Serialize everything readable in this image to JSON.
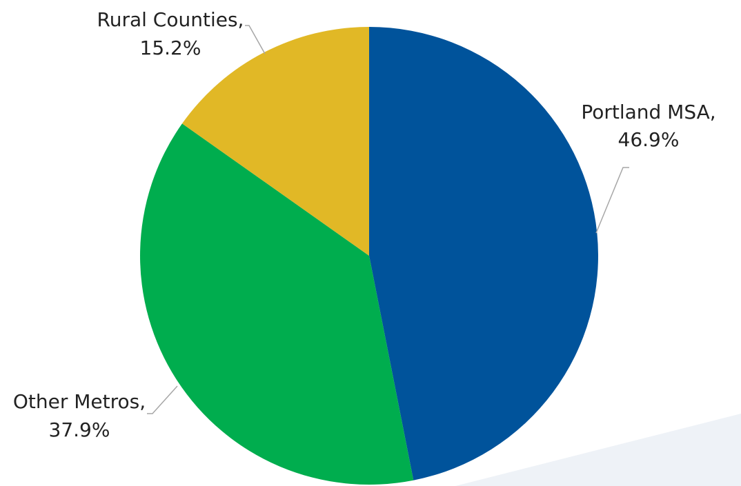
{
  "chart_data": {
    "type": "pie",
    "slices": [
      {
        "label": "Portland MSA",
        "value_label": "46.9%",
        "value": 46.9,
        "color": "#00539b"
      },
      {
        "label": "Other Metros",
        "value_label": "37.9%",
        "value": 37.9,
        "color": "#00ad4e"
      },
      {
        "label": "Rural Counties",
        "value_label": "15.2%",
        "value": 15.2,
        "color": "#e1b826"
      }
    ],
    "start_angle": "12 o'clock",
    "direction": "clockwise",
    "legend": "none",
    "data_labels": "outside with leader lines"
  }
}
